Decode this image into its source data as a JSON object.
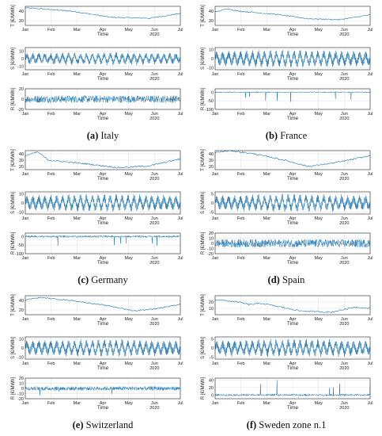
{
  "colors": {
    "line": "#1f77b4",
    "axis": "#222222",
    "grid": "#d9d9d9",
    "text": "#222222"
  },
  "panels": [
    {
      "id": "a",
      "label": "(a)",
      "name": "Italy",
      "subplots": [
        {
          "kind": "T",
          "ylabel": "T [€/MWh]",
          "yticks": [
            "20",
            "40"
          ],
          "ylim": [
            10,
            50
          ],
          "base": 40,
          "amp": 3,
          "noise": 1.5,
          "trend": [
            [
              0,
              47
            ],
            [
              0.3,
              40
            ],
            [
              0.55,
              27
            ],
            [
              0.8,
              25
            ],
            [
              1,
              35
            ]
          ],
          "season": 0,
          "xlabel": "Time"
        },
        {
          "kind": "S",
          "ylabel": "S [€/MWh]",
          "yticks": [
            "-10",
            "0",
            "10"
          ],
          "ylim": [
            -15,
            15
          ],
          "amp": 8,
          "noise": 3,
          "xlabel": "Time"
        },
        {
          "kind": "R",
          "ylabel": "R [€/MWh]",
          "yticks": [
            "-20",
            "0",
            "20"
          ],
          "ylim": [
            -20,
            20
          ],
          "amp": 7,
          "spike": 0,
          "xlabel": "Time"
        }
      ]
    },
    {
      "id": "b",
      "label": "(b)",
      "name": "France",
      "subplots": [
        {
          "kind": "T",
          "ylabel": "T [€/MWh]",
          "yticks": [
            "20",
            "40"
          ],
          "ylim": [
            10,
            50
          ],
          "trend": [
            [
              0,
              38
            ],
            [
              0.08,
              45
            ],
            [
              0.15,
              40
            ],
            [
              0.4,
              33
            ],
            [
              0.6,
              24
            ],
            [
              0.8,
              22
            ],
            [
              1,
              32
            ]
          ],
          "xlabel": "Time"
        },
        {
          "kind": "S",
          "ylabel": "S [€/MWh]",
          "yticks": [
            "-10",
            "0",
            "10"
          ],
          "ylim": [
            -12,
            12
          ],
          "amp": 9,
          "noise": 1.5,
          "xlabel": "Time"
        },
        {
          "kind": "R",
          "ylabel": "R [€/MWh]",
          "yticks": [
            "-100",
            "-50",
            "0"
          ],
          "ylim": [
            -100,
            20
          ],
          "amp": 3,
          "spike": -60,
          "xlabel": "Time"
        }
      ]
    },
    {
      "id": "c",
      "label": "(c)",
      "name": "Germany",
      "subplots": [
        {
          "kind": "T",
          "ylabel": "T [€/MWh]",
          "yticks": [
            "20",
            "30",
            "40"
          ],
          "ylim": [
            15,
            45
          ],
          "trend": [
            [
              0,
              37
            ],
            [
              0.08,
              43
            ],
            [
              0.15,
              30
            ],
            [
              0.4,
              24
            ],
            [
              0.6,
              18
            ],
            [
              0.8,
              21
            ],
            [
              1,
              32
            ]
          ],
          "xlabel": "Time"
        },
        {
          "kind": "S",
          "ylabel": "S [€/MWh]",
          "yticks": [
            "-10",
            "0",
            "10"
          ],
          "ylim": [
            -12,
            12
          ],
          "amp": 9,
          "noise": 1.5,
          "xlabel": "Time"
        },
        {
          "kind": "R",
          "ylabel": "R [€/MWh]",
          "yticks": [
            "-100",
            "-50",
            "0"
          ],
          "ylim": [
            -100,
            20
          ],
          "amp": 6,
          "spike": -60,
          "xlabel": "Time"
        }
      ]
    },
    {
      "id": "d",
      "label": "(d)",
      "name": "Spain",
      "subplots": [
        {
          "kind": "T",
          "ylabel": "T [€/MWh]",
          "yticks": [
            "20",
            "30",
            "40"
          ],
          "ylim": [
            15,
            45
          ],
          "trend": [
            [
              0,
              42
            ],
            [
              0.1,
              45
            ],
            [
              0.25,
              40
            ],
            [
              0.45,
              30
            ],
            [
              0.6,
              20
            ],
            [
              0.8,
              27
            ],
            [
              1,
              37
            ]
          ],
          "xlabel": "Time"
        },
        {
          "kind": "S",
          "ylabel": "S [€/MWh]",
          "yticks": [
            "-5",
            "0",
            "5"
          ],
          "ylim": [
            -6,
            6
          ],
          "amp": 4.5,
          "noise": 1.2,
          "xlabel": "Time"
        },
        {
          "kind": "R",
          "ylabel": "R [€/MWh]",
          "yticks": [
            "-20",
            "-10",
            "0",
            "10",
            "20"
          ],
          "ylim": [
            -20,
            20
          ],
          "amp": 8,
          "spike": 0,
          "xlabel": "Time"
        }
      ]
    },
    {
      "id": "e",
      "label": "(e)",
      "name": "Switzerland",
      "subplots": [
        {
          "kind": "T",
          "ylabel": "T [€/MWh]",
          "yticks": [
            "20",
            "40"
          ],
          "ylim": [
            10,
            50
          ],
          "trend": [
            [
              0,
              42
            ],
            [
              0.1,
              46
            ],
            [
              0.3,
              40
            ],
            [
              0.55,
              28
            ],
            [
              0.7,
              18
            ],
            [
              0.85,
              23
            ],
            [
              1,
              32
            ]
          ],
          "xlabel": "Time"
        },
        {
          "kind": "S",
          "ylabel": "S [€/MWh]",
          "yticks": [
            "-10",
            "0",
            "10"
          ],
          "ylim": [
            -12,
            12
          ],
          "amp": 9,
          "noise": 1.5,
          "xlabel": "Time"
        },
        {
          "kind": "R",
          "ylabel": "R [€/MWh]",
          "yticks": [
            "-20",
            "-10",
            "0",
            "10",
            "20"
          ],
          "ylim": [
            -20,
            20
          ],
          "amp": 4,
          "spike": -15,
          "xlabel": "Time"
        }
      ]
    },
    {
      "id": "f",
      "label": "(f)",
      "name": "Sweden zone n.1",
      "subplots": [
        {
          "kind": "T",
          "ylabel": "T [€/MWh]",
          "yticks": [
            "10",
            "20"
          ],
          "ylim": [
            0,
            30
          ],
          "trend": [
            [
              0,
              24
            ],
            [
              0.15,
              20
            ],
            [
              0.22,
              16
            ],
            [
              0.3,
              18
            ],
            [
              0.55,
              6
            ],
            [
              0.75,
              4
            ],
            [
              0.9,
              12
            ],
            [
              1,
              10
            ]
          ],
          "xlabel": "Time"
        },
        {
          "kind": "S",
          "ylabel": "S [€/MWh]",
          "yticks": [
            "-5",
            "0",
            "5"
          ],
          "ylim": [
            -6,
            6
          ],
          "amp": 4.5,
          "noise": 1.2,
          "xlabel": "Time"
        },
        {
          "kind": "R",
          "ylabel": "R [€/MWh]",
          "yticks": [
            "0",
            "20",
            "40"
          ],
          "ylim": [
            -10,
            45
          ],
          "amp": 2.5,
          "spike": 40,
          "xlabel": "Time"
        }
      ]
    }
  ],
  "xticks": [
    "Jan",
    "Feb",
    "Mar",
    "Apr",
    "May",
    "Jun",
    "Jul"
  ],
  "year": "2020"
}
